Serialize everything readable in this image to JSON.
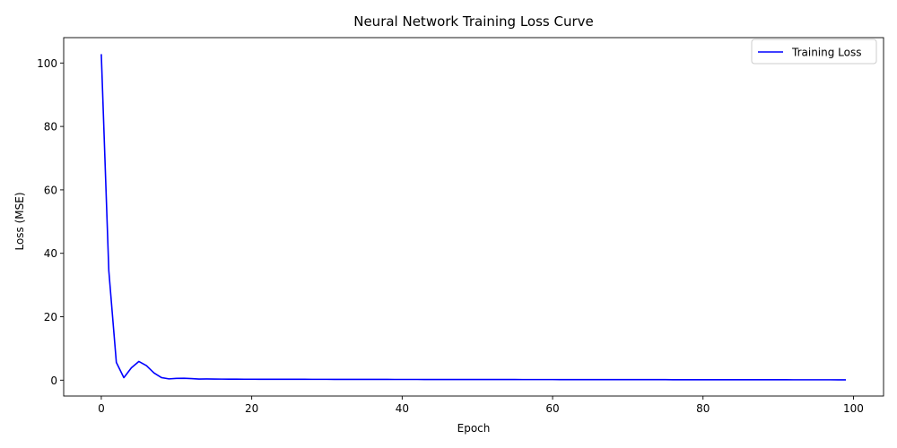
{
  "chart_data": {
    "type": "line",
    "title": "Neural Network Training Loss Curve",
    "xlabel": "Epoch",
    "ylabel": "Loss (MSE)",
    "xlim": [
      -5,
      104
    ],
    "ylim": [
      -5,
      108
    ],
    "xticks": [
      0,
      20,
      40,
      60,
      80,
      100
    ],
    "yticks": [
      0,
      20,
      40,
      60,
      80,
      100
    ],
    "xtick_labels": [
      "0",
      "20",
      "40",
      "60",
      "80",
      "100"
    ],
    "ytick_labels": [
      "0",
      "20",
      "40",
      "60",
      "80",
      "100"
    ],
    "grid": false,
    "legend": {
      "position": "top-right",
      "entries": [
        "Training Loss"
      ]
    },
    "series": [
      {
        "name": "Training Loss",
        "color": "#0000ff",
        "x": [
          0,
          1,
          2,
          3,
          4,
          5,
          6,
          7,
          8,
          9,
          10,
          11,
          12,
          13,
          14,
          15,
          16,
          17,
          18,
          19,
          20,
          21,
          22,
          23,
          24,
          25,
          26,
          27,
          28,
          29,
          30,
          31,
          32,
          33,
          34,
          35,
          36,
          37,
          38,
          39,
          40,
          41,
          42,
          43,
          44,
          45,
          46,
          47,
          48,
          49,
          50,
          51,
          52,
          53,
          54,
          55,
          56,
          57,
          58,
          59,
          60,
          61,
          62,
          63,
          64,
          65,
          66,
          67,
          68,
          69,
          70,
          71,
          72,
          73,
          74,
          75,
          76,
          77,
          78,
          79,
          80,
          81,
          82,
          83,
          84,
          85,
          86,
          87,
          88,
          89,
          90,
          91,
          92,
          93,
          94,
          95,
          96,
          97,
          98,
          99
        ],
        "y": [
          102.8,
          34.5,
          5.6,
          0.8,
          3.9,
          5.9,
          4.6,
          2.3,
          0.8,
          0.4,
          0.55,
          0.6,
          0.5,
          0.35,
          0.38,
          0.36,
          0.33,
          0.32,
          0.31,
          0.3,
          0.3,
          0.29,
          0.29,
          0.28,
          0.28,
          0.27,
          0.27,
          0.27,
          0.26,
          0.26,
          0.26,
          0.25,
          0.25,
          0.25,
          0.25,
          0.24,
          0.24,
          0.24,
          0.24,
          0.23,
          0.23,
          0.23,
          0.23,
          0.22,
          0.22,
          0.22,
          0.22,
          0.21,
          0.21,
          0.21,
          0.21,
          0.2,
          0.2,
          0.2,
          0.2,
          0.2,
          0.19,
          0.19,
          0.19,
          0.19,
          0.19,
          0.18,
          0.18,
          0.18,
          0.18,
          0.18,
          0.17,
          0.17,
          0.17,
          0.17,
          0.17,
          0.16,
          0.16,
          0.16,
          0.16,
          0.16,
          0.15,
          0.15,
          0.15,
          0.15,
          0.15,
          0.14,
          0.14,
          0.14,
          0.14,
          0.14,
          0.13,
          0.13,
          0.13,
          0.13,
          0.13,
          0.13,
          0.12,
          0.12,
          0.12,
          0.12,
          0.12,
          0.12,
          0.11,
          0.11
        ]
      }
    ]
  }
}
